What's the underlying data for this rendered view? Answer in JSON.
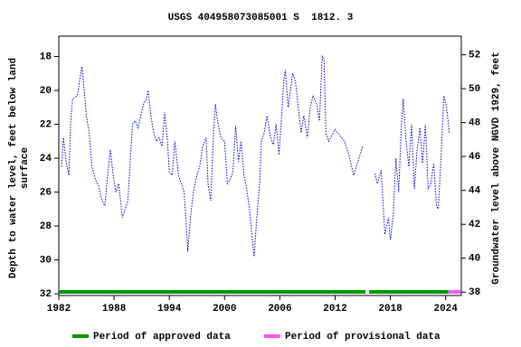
{
  "chart_data": {
    "type": "line",
    "title": "USGS 404958073085001 S  1812. 3",
    "ylabel": [
      "Depth to water level, feet below land",
      "surface"
    ],
    "y2label": "Groundwater level above NGVD 1929, feet",
    "xlim": [
      1982,
      2025.7
    ],
    "xticks": [
      1982,
      1988,
      1994,
      2000,
      2006,
      2012,
      2018,
      2024
    ],
    "ylim": [
      32.1,
      16.8
    ],
    "yticks": [
      18,
      20,
      22,
      24,
      26,
      28,
      30,
      32
    ],
    "y2lim": [
      37.8,
      53.1
    ],
    "y2ticks": [
      38,
      40,
      42,
      44,
      46,
      48,
      50,
      52
    ],
    "series": [
      {
        "color": "#0000cc",
        "x": [
          1982.3,
          1982.5,
          1982.8,
          1983.1,
          1983.3,
          1983.5,
          1984.0,
          1984.5,
          1984.8,
          1985.0,
          1985.3,
          1985.6,
          1986.0,
          1986.3,
          1986.7,
          1987.0,
          1987.3,
          1987.6,
          1987.9,
          1988.2,
          1988.5,
          1988.9,
          1989.2,
          1989.5,
          1989.8,
          1990.0,
          1990.3,
          1990.6,
          1990.9,
          1991.2,
          1991.5,
          1991.7,
          1992.0,
          1992.3,
          1992.6,
          1992.9,
          1993.2,
          1993.5,
          1993.8,
          1994.0,
          1994.3,
          1994.6,
          1995.0,
          1995.3,
          1995.6,
          1995.8,
          1996.0,
          1996.3,
          1996.6,
          1997.0,
          1997.3,
          1997.6,
          1998.0,
          1998.2,
          1998.5,
          1998.8,
          1999.0,
          1999.3,
          1999.6,
          2000.0,
          2000.3,
          2000.6,
          2000.9,
          2001.2,
          2001.5,
          2001.8,
          2002.1,
          2002.4,
          2002.7,
          2003.0,
          2003.2,
          2003.5,
          2003.8,
          2004.0,
          2004.3,
          2004.6,
          2005.0,
          2005.3,
          2005.6,
          2005.9,
          2006.2,
          2006.4,
          2006.6,
          2006.9,
          2007.2,
          2007.4,
          2007.7,
          2008.0,
          2008.3,
          2008.6,
          2009.0,
          2009.3,
          2009.6,
          2010.0,
          2010.3,
          2010.6,
          2010.8,
          2011.0,
          2011.3,
          2012.0,
          2013.0,
          2013.5,
          2014.0,
          2015.0,
          2015.6,
          2016.3,
          2016.6,
          2017.0,
          2017.4,
          2017.8,
          2018.0,
          2018.3,
          2018.6,
          2018.9,
          2019.2,
          2019.4,
          2019.7,
          2020.0,
          2020.3,
          2020.6,
          2020.9,
          2021.2,
          2021.5,
          2021.8,
          2022.1,
          2022.4,
          2022.7,
          2023.0,
          2023.2,
          2023.5,
          2023.8,
          2024.1,
          2024.4
        ],
        "values": [
          24.5,
          22.8,
          24.2,
          25,
          21.8,
          20.5,
          20.3,
          18.6,
          20.2,
          21.5,
          22.5,
          24.5,
          25.3,
          25.6,
          26.5,
          26.8,
          25,
          23.5,
          25,
          26,
          25.5,
          27.5,
          27,
          26.5,
          23.8,
          22,
          21.8,
          22.2,
          21.5,
          20.8,
          20.5,
          20.0,
          21.5,
          22.5,
          23,
          22.8,
          23.3,
          21.3,
          23,
          24.8,
          25,
          23,
          25,
          25.5,
          26,
          27.5,
          29.5,
          27.5,
          26,
          25,
          24.5,
          23.3,
          22.8,
          25.5,
          26.5,
          22.5,
          20.8,
          22,
          22.8,
          23,
          25.5,
          25.3,
          24.8,
          22.1,
          24.2,
          23,
          25,
          25.8,
          27,
          28.7,
          29.8,
          27.5,
          25.5,
          23,
          22.5,
          21.5,
          22.8,
          23.2,
          22,
          23.8,
          21.5,
          19.5,
          18.8,
          21,
          19.8,
          19,
          19.5,
          21,
          22.5,
          21.5,
          22.8,
          21,
          20.3,
          20.8,
          21.8,
          18,
          18.2,
          22.5,
          23,
          22.3,
          23,
          23.8,
          25,
          23.3,
          null,
          24.9,
          25.5,
          24.7,
          28.5,
          27.5,
          28.8,
          27.5,
          24,
          26,
          22,
          20.5,
          23,
          24.5,
          22,
          25.8,
          23.5,
          22.2,
          24.3,
          22,
          25.8,
          25.5,
          24.3,
          26.8,
          27,
          24,
          20.3,
          21,
          22.5
        ]
      }
    ],
    "periods": [
      {
        "name": "Period of approved data",
        "color": "#009900",
        "ranges": [
          [
            1982,
            2015.3
          ],
          [
            2015.7,
            2024.3
          ]
        ]
      },
      {
        "name": "Period of provisional data",
        "color": "#ff55ff",
        "ranges": [
          [
            2024.3,
            2025.6
          ]
        ]
      }
    ]
  }
}
